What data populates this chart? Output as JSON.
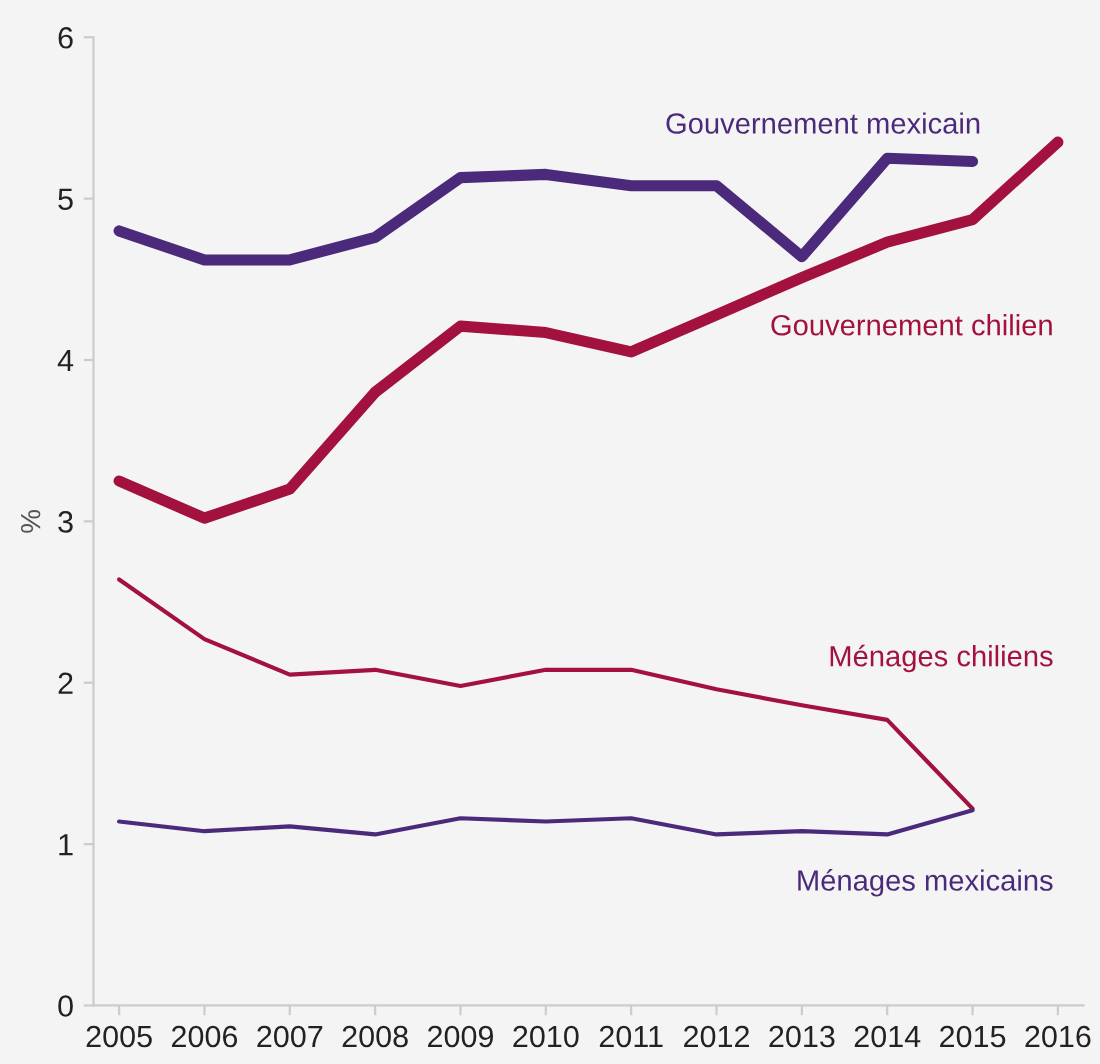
{
  "chart_data": {
    "type": "line",
    "ylabel": "%",
    "categories": [
      "2005",
      "2006",
      "2007",
      "2008",
      "2009",
      "2010",
      "2011",
      "2012",
      "2013",
      "2014",
      "2015",
      "2016"
    ],
    "series": [
      {
        "name": "Gouvernement mexicain",
        "color": "#4b2a7b",
        "values": [
          4.8,
          4.62,
          4.62,
          4.76,
          5.13,
          5.15,
          5.08,
          5.08,
          4.64,
          5.25,
          5.23,
          null
        ]
      },
      {
        "name": "Gouvernement chilien",
        "color": "#a3123f",
        "values": [
          3.25,
          3.02,
          3.2,
          3.8,
          4.21,
          4.17,
          4.05,
          4.28,
          4.51,
          4.73,
          4.87,
          5.35
        ]
      },
      {
        "name": "Ménages chiliens",
        "color": "#a3123f",
        "values": [
          2.64,
          2.27,
          2.05,
          2.08,
          1.98,
          2.08,
          2.08,
          1.96,
          1.86,
          1.77,
          1.22,
          null
        ]
      },
      {
        "name": "Ménages mexicains",
        "color": "#4b2a7b",
        "values": [
          1.14,
          1.08,
          1.11,
          1.06,
          1.16,
          1.14,
          1.16,
          1.06,
          1.08,
          1.06,
          1.21,
          null
        ]
      }
    ],
    "ylim": [
      0,
      6
    ],
    "yticks": [
      0,
      1,
      2,
      3,
      4,
      5,
      6
    ],
    "grid": false,
    "legend": false,
    "marker": "none",
    "line_style": "solid"
  }
}
